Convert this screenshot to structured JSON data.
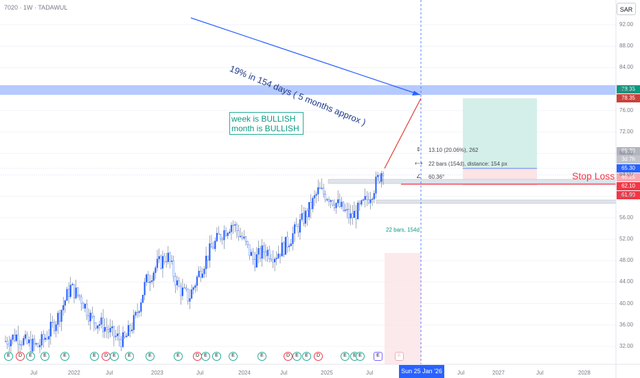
{
  "header": {
    "symbol_title": "7020 · 1W · TADAWUL",
    "currency": "SAR"
  },
  "annotations": {
    "arrow_text": "19% in 154 days ( 5 months approx )",
    "sentiment_lines": [
      "week is BULLISH",
      "month is BULLISH"
    ],
    "stop_loss_text": "Stop Loss",
    "measure_price": "13.10 (20.06%), 262",
    "measure_bars": "22 bars (154d), distance: 154 px",
    "measure_angle": "60.36°",
    "projection_bars": "22 bars, 154d"
  },
  "price_labels": [
    {
      "text": "78.35",
      "color": "#089981"
    },
    {
      "text": "78.35",
      "color": "#c9413c"
    },
    {
      "text": "65.30",
      "color": "#b2b5be"
    },
    {
      "text": "3d 7h",
      "color": "#c1c4cc"
    },
    {
      "text": "65.30",
      "color": "#2962ff"
    },
    {
      "text": "65.25",
      "color": "#f7a9b0"
    },
    {
      "text": "62.10",
      "color": "#f23645"
    },
    {
      "text": "61.90",
      "color": "#f23645"
    }
  ],
  "crosshair_date": "Sun 25 Jan '26",
  "chart_data": {
    "type": "candlestick",
    "ylim": [
      30,
      94
    ],
    "y_ticks": [
      "32.00",
      "36.00",
      "40.00",
      "44.00",
      "48.00",
      "52.00",
      "56.00",
      "60.00",
      "64.00",
      "68.00",
      "72.00",
      "76.00",
      "80.00",
      "84.00",
      "88.00",
      "92.00"
    ],
    "x_ticks": [
      "Jul",
      "2022",
      "Jul",
      "2023",
      "Jul",
      "2024",
      "Jul",
      "2025",
      "Jul",
      "Jul",
      "2027",
      "Jul",
      "2028"
    ],
    "x": [
      "2021-05",
      "2021-07",
      "2021-09",
      "2021-11",
      "2022-01",
      "2022-02",
      "2022-04",
      "2022-05",
      "2022-06",
      "2022-08",
      "2022-10",
      "2022-12",
      "2023-01",
      "2023-03",
      "2023-05",
      "2023-06",
      "2023-08",
      "2023-09",
      "2023-11",
      "2024-01",
      "2024-02",
      "2024-04",
      "2024-05",
      "2024-07",
      "2024-08",
      "2024-09",
      "2024-11",
      "2025-01",
      "2025-02",
      "2025-03",
      "2025-04",
      "2025-05",
      "2025-06",
      "2025-07",
      "2025-08",
      "2025-09"
    ],
    "close": [
      33,
      34,
      32.5,
      32,
      34.5,
      38,
      43,
      41,
      37,
      36,
      34,
      33,
      37,
      44,
      47,
      49,
      43,
      41,
      46,
      50,
      53,
      55,
      52,
      48,
      50,
      49,
      51,
      54,
      57,
      61,
      60,
      58,
      56,
      58,
      61,
      65.3
    ],
    "levels": {
      "target": 78.35,
      "current": 65.3,
      "resistance": 65.25,
      "stop_loss": 62.1,
      "support": 61.9
    },
    "measurement": {
      "price_change": 13.1,
      "percent_change": 20.06,
      "bars": 22,
      "days": 154
    }
  },
  "colors": {
    "up": "#2962ff",
    "down": "#2962ff",
    "accent": "#2962ff",
    "target_zone": "#d4efe9",
    "stop_zone": "#fbe3e6"
  },
  "events": [
    {
      "label": "E",
      "kind": "earn"
    },
    {
      "label": "D",
      "kind": "div"
    },
    {
      "label": "E",
      "kind": "earn"
    },
    {
      "label": "E",
      "kind": "earn"
    },
    {
      "label": "E",
      "kind": "earn"
    },
    {
      "label": "E",
      "kind": "earn"
    },
    {
      "label": "D",
      "kind": "div"
    },
    {
      "label": "E",
      "kind": "earn"
    },
    {
      "label": "E",
      "kind": "earn"
    },
    {
      "label": "E",
      "kind": "earn"
    },
    {
      "label": "E",
      "kind": "earn"
    },
    {
      "label": "D",
      "kind": "div"
    },
    {
      "label": "E",
      "kind": "earn"
    },
    {
      "label": "E",
      "kind": "earn"
    },
    {
      "label": "E",
      "kind": "earn"
    },
    {
      "label": "E",
      "kind": "earn"
    },
    {
      "label": "D",
      "kind": "div"
    },
    {
      "label": "E",
      "kind": "earn"
    },
    {
      "label": "E",
      "kind": "earn"
    },
    {
      "label": "D",
      "kind": "div"
    },
    {
      "label": "E",
      "kind": "earn"
    },
    {
      "label": "E",
      "kind": "earn"
    },
    {
      "label": "E",
      "kind": "earn"
    }
  ]
}
